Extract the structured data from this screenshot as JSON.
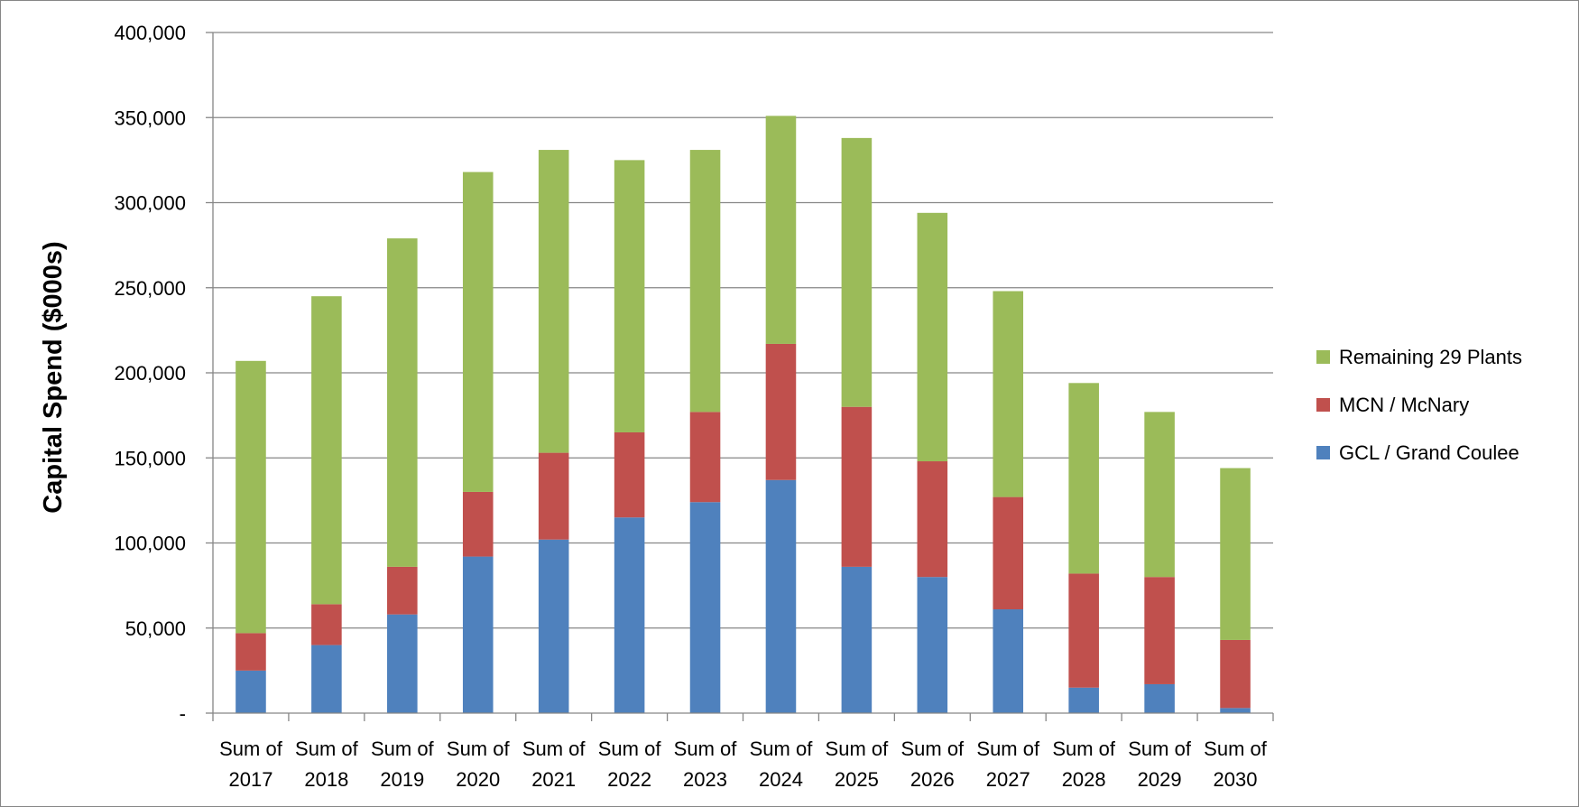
{
  "chart_data": {
    "type": "bar",
    "stacked": true,
    "ylabel": "Capital Spend ($000s)",
    "xlabel": "",
    "ylim": [
      0,
      400000
    ],
    "yticks": [
      {
        "value": 0,
        "label": "-"
      },
      {
        "value": 50000,
        "label": "50,000"
      },
      {
        "value": 100000,
        "label": "100,000"
      },
      {
        "value": 150000,
        "label": "150,000"
      },
      {
        "value": 200000,
        "label": "200,000"
      },
      {
        "value": 250000,
        "label": "250,000"
      },
      {
        "value": 300000,
        "label": "300,000"
      },
      {
        "value": 350000,
        "label": "350,000"
      },
      {
        "value": 400000,
        "label": "400,000"
      }
    ],
    "grid": true,
    "legend_position": "right",
    "category_prefix": "Sum of",
    "categories": [
      "2017",
      "2018",
      "2019",
      "2020",
      "2021",
      "2022",
      "2023",
      "2024",
      "2025",
      "2026",
      "2027",
      "2028",
      "2029",
      "2030"
    ],
    "series": [
      {
        "name": "GCL / Grand Coulee",
        "color": "#4F81BD",
        "values": [
          25000,
          40000,
          58000,
          92000,
          102000,
          115000,
          124000,
          137000,
          86000,
          80000,
          61000,
          15000,
          17000,
          3000
        ]
      },
      {
        "name": "MCN / McNary",
        "color": "#C0504D",
        "values": [
          22000,
          24000,
          28000,
          38000,
          51000,
          50000,
          53000,
          80000,
          94000,
          68000,
          66000,
          67000,
          63000,
          40000
        ]
      },
      {
        "name": "Remaining 29 Plants",
        "color": "#9BBB59",
        "values": [
          160000,
          181000,
          193000,
          188000,
          178000,
          160000,
          154000,
          134000,
          158000,
          146000,
          121000,
          112000,
          97000,
          101000
        ]
      }
    ],
    "legend_order": [
      "Remaining 29 Plants",
      "MCN / McNary",
      "GCL / Grand Coulee"
    ]
  }
}
